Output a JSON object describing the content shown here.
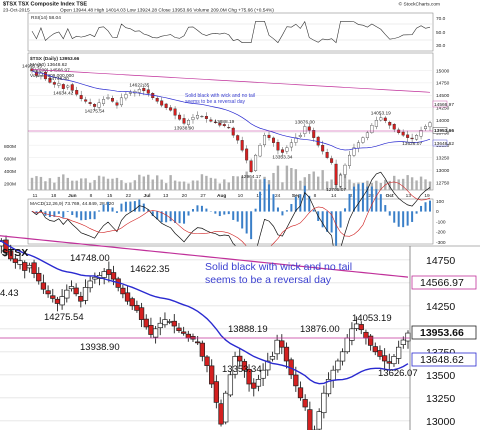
{
  "header": {
    "title": "$TSX TSX Composite Index  TSE",
    "date": "23-Oct-2015",
    "quote_line": "Open 13944.48  High 14014.03  Low 13924.28  Close 13953.66  Volume 209.0M  Chg +75.66 (+0.54%)",
    "copyright": "© StockCharts.com"
  },
  "annotation": {
    "line1": "Solid black with wick and no tail",
    "line2": "seems to be a reversal day"
  },
  "colors": {
    "ma50": "#2a2ad0",
    "ma200": "#c0309a",
    "annotation": "#3a3fd0",
    "down_candle": "#d42020",
    "up_candle": "#ffffff",
    "volume": "#b0b0b0"
  },
  "top_chart": {
    "rsi_label": "RSI(14) 58.04",
    "rsi_ticks": [
      "70.0",
      "50.0",
      "30.0"
    ],
    "legend_symbol": "$TSX (Daily) 13953.66",
    "legend_ma50": "MA(50) 13648.62",
    "legend_ma200": "MA(200) 14566.97",
    "legend_volume": "Volume 209,000,000",
    "tag_ma200": "14566.97",
    "tag_close": "13953.66",
    "tag_ma50": "13648.62",
    "right_axis": [
      "15000",
      "14750",
      "14500",
      "14250",
      "14000",
      "13750",
      "13500",
      "13250",
      "13000",
      "12750"
    ],
    "volume_axis": [
      "800M",
      "600M",
      "400M",
      "200M"
    ],
    "months": [
      "11",
      "18",
      "Jun",
      "8",
      "15",
      "22",
      "Jul",
      "13",
      "20",
      "27",
      "Aug",
      "10",
      "17",
      "24",
      "Sep",
      "8",
      "14",
      "21",
      "28",
      "Oct",
      "13",
      "19"
    ],
    "price_labels": [
      "14995.33",
      "14748.00",
      "14634.42",
      "14622.35",
      "14275.54",
      "13938.90",
      "13888.19",
      "13876.00",
      "14053.19",
      "13353.34",
      "13626.07",
      "12964.17",
      "12705.07"
    ],
    "macd_label": "MACD(12,26,9) 73.769, 44.849, 28.920",
    "macd_axis": [
      "100",
      "0",
      "-100",
      "-200",
      "-300"
    ]
  },
  "bottom_chart": {
    "symbol_label": "$TSX",
    "tag_ma200": "14566.97",
    "tag_close": "13953.66",
    "tag_ma50": "13648.62",
    "right_axis": [
      "14750",
      "14500",
      "14250",
      "14000",
      "13750",
      "13500",
      "13250",
      "13000"
    ],
    "price_labels": [
      "4.43",
      "14748.00",
      "14622.35",
      "14275.54",
      "13938.90",
      "13888.19",
      "13876.00",
      "14053.19",
      "13353.34",
      "13626.07"
    ]
  },
  "chart_data": [
    {
      "type": "candlestick",
      "title": "$TSX TSX Composite Index TSE",
      "date_range": "Jun 2015 - Oct 23 2015",
      "ylim": [
        12600,
        15250
      ],
      "series": [
        {
          "name": "MA(50)",
          "last": 13648.62
        },
        {
          "name": "MA(200)",
          "last": 14566.97
        }
      ],
      "close": [
        14995,
        14900,
        14960,
        14830,
        14760,
        14720,
        14740,
        14634,
        14690,
        14600,
        14520,
        14430,
        14380,
        14330,
        14275,
        14350,
        14420,
        14460,
        14380,
        14300,
        14450,
        14520,
        14560,
        14580,
        14622,
        14590,
        14540,
        14450,
        14380,
        14300,
        14250,
        14200,
        14100,
        14020,
        13938,
        14000,
        14060,
        14100,
        14080,
        14030,
        13980,
        13950,
        13900,
        13888,
        13850,
        13700,
        13600,
        13400,
        13200,
        12964,
        13300,
        13500,
        13700,
        13650,
        13550,
        13400,
        13353,
        13450,
        13550,
        13650,
        13700,
        13876,
        13800,
        13650,
        13500,
        13380,
        13250,
        13150,
        12705,
        12900,
        13100,
        13300,
        13450,
        13550,
        13650,
        13750,
        13900,
        14000,
        14053,
        13990,
        13900,
        13820,
        13750,
        13700,
        13650,
        13626,
        13700,
        13800,
        13878,
        13953.66
      ]
    },
    {
      "type": "line",
      "title": "RSI(14) 58.04",
      "ylim": [
        0,
        100
      ]
    },
    {
      "type": "bar",
      "title": "Volume 209,000,000",
      "ylim": [
        0,
        900
      ]
    },
    {
      "type": "line",
      "title": "MACD(12,26,9) 73.769, 44.849, 28.920",
      "ylim": [
        -320,
        120
      ]
    }
  ]
}
